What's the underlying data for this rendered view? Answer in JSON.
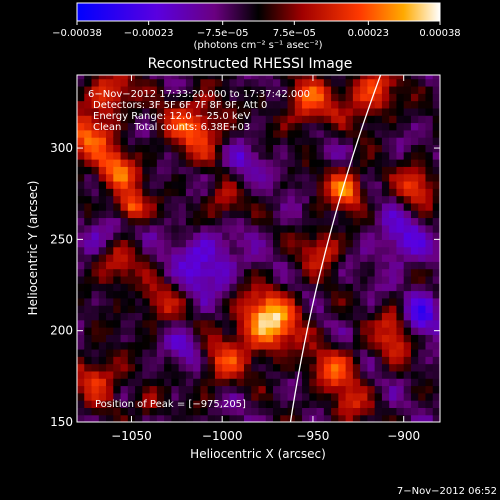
{
  "chart_data": {
    "type": "heatmap",
    "title": "Reconstructed RHESSI Image",
    "xlabel": "Heliocentric X (arcsec)",
    "ylabel": "Heliocentric Y (arcsec)",
    "xlim": [
      -1080,
      -880
    ],
    "ylim": [
      150,
      340
    ],
    "xticks": [
      -1050,
      -1000,
      -950,
      -900
    ],
    "yticks": [
      150,
      200,
      250,
      300
    ],
    "xtick_labels": [
      "−1050",
      "−1000",
      "−950",
      "−900"
    ],
    "ytick_labels": [
      "150",
      "200",
      "250",
      "300"
    ],
    "colorbar": {
      "range": [
        -0.00038,
        0.00038
      ],
      "ticks": [
        -0.00038,
        -0.00023,
        -7.5e-05,
        7.5e-05,
        0.00023,
        0.00038
      ],
      "tick_labels": [
        "−0.00038",
        "−0.00023",
        "−7.5e−05",
        "7.5e−05",
        "0.00023",
        "0.00038"
      ],
      "label": "(photons cm⁻² s⁻¹ asec⁻²)",
      "colors": [
        "#0000ff",
        "#7a00c0",
        "#000000",
        "#a00000",
        "#ff3000",
        "#ffb000",
        "#ffffff"
      ]
    },
    "annotations": [
      "6−Nov−2012 17:33:20.000 to 17:37:42.000",
      "Detectors: 3F 5F 6F 7F 8F 9F, Att 0",
      "Energy Range: 12.0 − 25.0 keV",
      "Clean    Total counts: 6.38E+03"
    ],
    "peak_label": "Position of Peak = [−975,205]",
    "peak": {
      "x": -975,
      "y": 205
    },
    "sources": [
      {
        "x": -975,
        "y": 205,
        "r": 12,
        "v": 0.00038
      },
      {
        "x": -1058,
        "y": 287,
        "r": 8,
        "v": 0.00028
      },
      {
        "x": -1050,
        "y": 268,
        "r": 6,
        "v": 0.00032
      },
      {
        "x": -1075,
        "y": 305,
        "r": 10,
        "v": 0.00026
      },
      {
        "x": -1015,
        "y": 312,
        "r": 12,
        "v": 0.00025
      },
      {
        "x": -952,
        "y": 325,
        "r": 10,
        "v": 0.00024
      },
      {
        "x": -918,
        "y": 330,
        "r": 10,
        "v": 0.00024
      },
      {
        "x": -932,
        "y": 278,
        "r": 8,
        "v": 0.00028
      },
      {
        "x": -893,
        "y": 280,
        "r": 8,
        "v": 0.00022
      },
      {
        "x": -1062,
        "y": 330,
        "r": 9,
        "v": 0.00023
      },
      {
        "x": -1000,
        "y": 270,
        "r": 8,
        "v": 0.00016
      },
      {
        "x": -945,
        "y": 245,
        "r": 8,
        "v": 0.0002
      },
      {
        "x": -1035,
        "y": 215,
        "r": 8,
        "v": 0.00018
      },
      {
        "x": -905,
        "y": 195,
        "r": 8,
        "v": 0.00018
      },
      {
        "x": -1000,
        "y": 182,
        "r": 9,
        "v": 0.0002
      },
      {
        "x": -938,
        "y": 178,
        "r": 10,
        "v": 0.00022
      },
      {
        "x": -1068,
        "y": 175,
        "r": 10,
        "v": 0.0002
      },
      {
        "x": -1058,
        "y": 235,
        "r": 9,
        "v": 0.00018
      },
      {
        "x": -930,
        "y": 158,
        "r": 7,
        "v": 0.00016
      },
      {
        "x": -1040,
        "y": 160,
        "r": 6,
        "v": 0.00014
      },
      {
        "x": -905,
        "y": 208,
        "r": 6,
        "v": 0.00014
      }
    ],
    "sinks": [
      {
        "x": -1008,
        "y": 238,
        "r": 12,
        "v": -0.00018
      },
      {
        "x": -902,
        "y": 250,
        "r": 10,
        "v": -0.00016
      },
      {
        "x": -890,
        "y": 210,
        "r": 8,
        "v": -0.00022
      },
      {
        "x": -1065,
        "y": 255,
        "r": 8,
        "v": -0.00013
      },
      {
        "x": -990,
        "y": 292,
        "r": 8,
        "v": -0.00012
      },
      {
        "x": -1020,
        "y": 190,
        "r": 7,
        "v": -0.00012
      }
    ],
    "limb_color": "#ffffff",
    "grid": false
  },
  "footer": {
    "timestamp": "7−Nov−2012 06:52"
  }
}
